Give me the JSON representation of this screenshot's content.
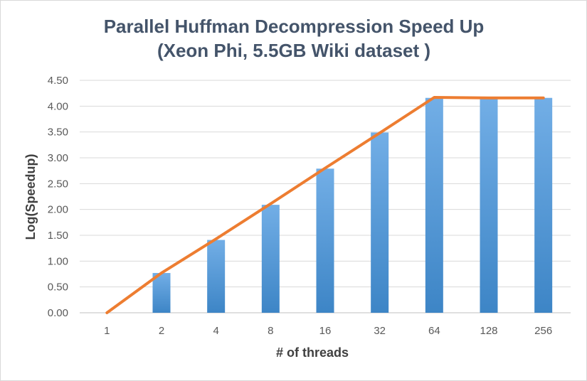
{
  "chart_data": {
    "type": "bar",
    "title_line1": "Parallel Huffman Decompression Speed Up",
    "title_line2": "(Xeon Phi, 5.5GB Wiki dataset )",
    "xlabel": "# of threads",
    "ylabel": "Log(Speedup)",
    "categories": [
      "1",
      "2",
      "4",
      "8",
      "16",
      "32",
      "64",
      "128",
      "256"
    ],
    "series": [
      {
        "type": "bar",
        "values": [
          0.0,
          0.77,
          1.41,
          2.09,
          2.79,
          3.49,
          4.16,
          4.16,
          4.16
        ],
        "color": "#5b9bd5"
      },
      {
        "type": "line",
        "values": [
          0.0,
          0.77,
          1.43,
          2.11,
          2.8,
          3.48,
          4.17,
          4.16,
          4.16
        ],
        "color": "#ed7d31"
      }
    ],
    "ylim": [
      0,
      4.5
    ],
    "yticks": [
      "0.00",
      "0.50",
      "1.00",
      "1.50",
      "2.00",
      "2.50",
      "3.00",
      "3.50",
      "4.00",
      "4.50"
    ],
    "grid": true,
    "legend": "none"
  }
}
